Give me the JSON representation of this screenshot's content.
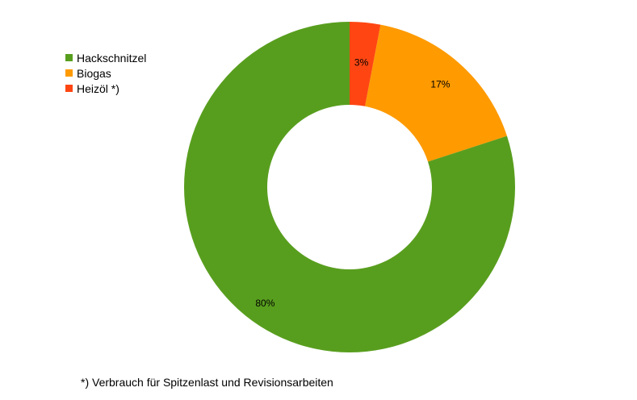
{
  "chart_data": {
    "type": "pie",
    "title": "",
    "donut": true,
    "legend_position": "top-left",
    "categories": [
      "Hackschnitzel",
      "Biogas",
      "Heizöl *)"
    ],
    "values": [
      80,
      17,
      3
    ],
    "labels": [
      "80%",
      "17%",
      "3%"
    ],
    "colors": [
      "#589e1e",
      "#ff9a00",
      "#ff4612"
    ]
  },
  "footnote": "*) Verbrauch für Spitzenlast und Revisionsarbeiten"
}
